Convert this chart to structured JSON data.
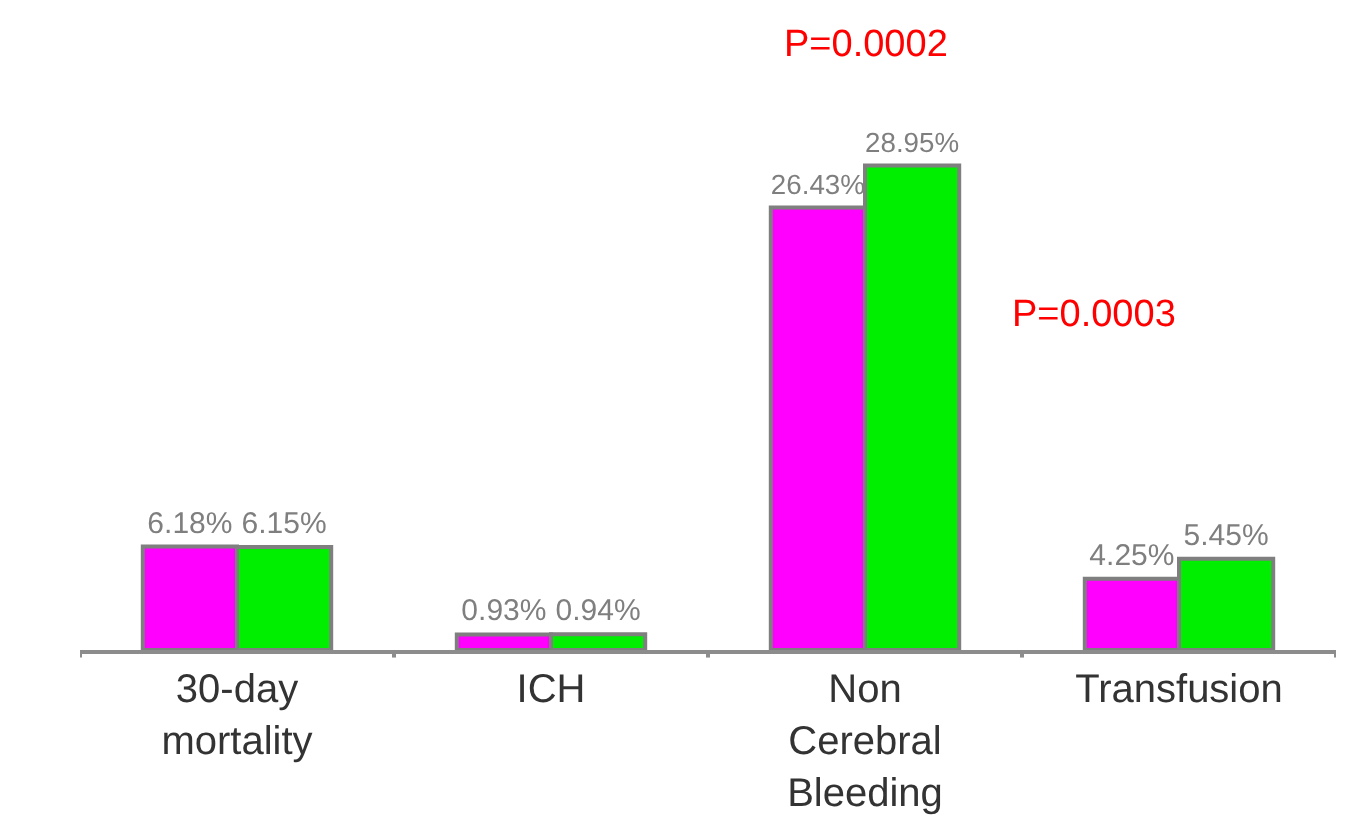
{
  "chart_data": {
    "type": "bar",
    "categories": [
      "30-day mortality",
      "ICH",
      "Non Cerebral Bleeding",
      "Transfusion"
    ],
    "series": [
      {
        "color": "#ff00ff",
        "values": [
          6.18,
          0.93,
          26.43,
          4.25
        ],
        "value_labels": [
          "6.18%",
          "0.93%",
          "26.43%",
          "4.25%"
        ]
      },
      {
        "color": "#00ee00",
        "values": [
          6.15,
          0.94,
          28.95,
          5.45
        ],
        "value_labels": [
          "6.15%",
          "0.94%",
          "28.95%",
          "5.45%"
        ]
      }
    ],
    "annotations": [
      "P=0.0002",
      "P=0.0003"
    ],
    "legend": false
  }
}
